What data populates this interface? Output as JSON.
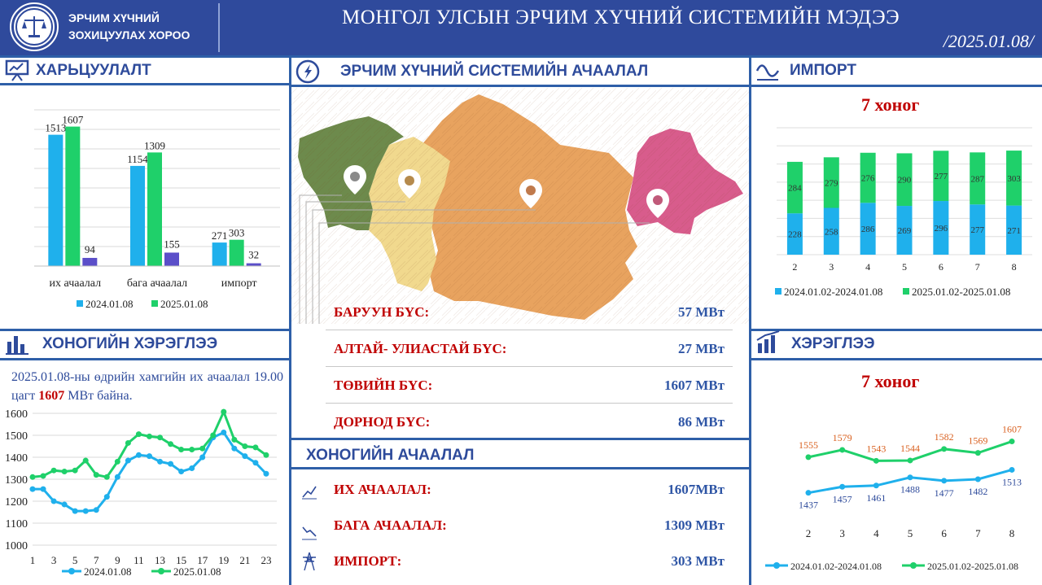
{
  "header": {
    "org_line1": "ЭРЧИМ ХҮЧНИЙ",
    "org_line2": "ЗОХИЦУУЛАХ ХОРОО",
    "title": "МОНГОЛ УЛСЫН ЭРЧИМ ХҮЧНИЙ СИСТЕМИЙН МЭДЭЭ",
    "date": "/2025.01.08/"
  },
  "sections": {
    "comparison": "ХАРЬЦУУЛАЛТ",
    "system_load": "ЭРЧИМ ХҮЧНИЙ СИСТЕМИЙН АЧААЛАЛ",
    "import": "ИМПОРТ",
    "daily_consumption": "ХОНОГИЙН ХЭРЭГЛЭЭ",
    "daily_load": "ХОНОГИЙН АЧААЛАЛ",
    "consumption": "ХЭРЭГЛЭЭ"
  },
  "daily_note": {
    "prefix": "2025.01.08-ны өдрийн хамгийн их ачаалал 19.00 цагт ",
    "value": "1607",
    "suffix": " МВт байна."
  },
  "regions": [
    {
      "name": "БАРУУН БҮС:",
      "value": "57 МВт"
    },
    {
      "name": "АЛТАЙ- УЛИАСТАЙ БҮС:",
      "value": "27 МВт"
    },
    {
      "name": "ТӨВИЙН БҮС:",
      "value": "1607 МВт"
    },
    {
      "name": "ДОРНОД БҮС:",
      "value": "86 МВт"
    }
  ],
  "daily_load": [
    {
      "name": "ИХ АЧААЛАЛ:",
      "value": "1607МВт"
    },
    {
      "name": "БАГА АЧААЛАЛ:",
      "value": "1309 МВт"
    },
    {
      "name": "ИМПОРТ:",
      "value": "303 МВт"
    }
  ],
  "week_label": "7 хоног",
  "colors": {
    "blue": "#1fb0ec",
    "green": "#1fd06a",
    "purple": "#5b4fc9",
    "header": "#2f4a9c",
    "orange_label": "#d9601f"
  },
  "icons": [
    "presentation-icon",
    "energy-icon",
    "wave-icon",
    "bar-chart-icon",
    "growth-chart-icon",
    "up-trend-icon",
    "down-trend-icon",
    "power-tower-icon",
    "map-pin-icon"
  ],
  "chart_data": [
    {
      "id": "comparison",
      "type": "bar",
      "categories": [
        "их ачаалал",
        "бага ачаалал",
        "импорт"
      ],
      "series": [
        {
          "name": "2024.01.08",
          "values": [
            1513,
            1154,
            271
          ],
          "color": "#1fb0ec"
        },
        {
          "name": "2025.01.08",
          "values": [
            1607,
            1309,
            303
          ],
          "color": "#1fd06a"
        }
      ],
      "diff_values": [
        94,
        155,
        32
      ],
      "diff_color": "#5b4fc9",
      "ylim": [
        0,
        1800
      ],
      "legend": "bottom"
    },
    {
      "id": "import_week",
      "type": "bar",
      "stacked": true,
      "categories": [
        "2",
        "3",
        "4",
        "5",
        "6",
        "7",
        "8"
      ],
      "series": [
        {
          "name": "2024.01.02-2024.01.08",
          "values": [
            228,
            258,
            286,
            269,
            296,
            277,
            271
          ],
          "color": "#1fb0ec"
        },
        {
          "name": "2025.01.02-2025.01.08",
          "values": [
            284,
            279,
            276,
            290,
            277,
            287,
            303
          ],
          "color": "#1fd06a"
        }
      ],
      "ylim": [
        0,
        700
      ],
      "legend": "bottom"
    },
    {
      "id": "daily_consumption",
      "type": "line",
      "x": [
        1,
        2,
        3,
        4,
        5,
        6,
        7,
        8,
        9,
        10,
        11,
        12,
        13,
        14,
        15,
        16,
        17,
        18,
        19,
        20,
        21,
        22,
        23,
        24
      ],
      "xticks": [
        "1",
        "3",
        "5",
        "7",
        "9",
        "11",
        "13",
        "15",
        "17",
        "19",
        "21",
        "23"
      ],
      "series": [
        {
          "name": "2024.01.08",
          "values": [
            1255,
            1255,
            1200,
            1185,
            1155,
            1155,
            1160,
            1220,
            1310,
            1385,
            1410,
            1405,
            1380,
            1370,
            1335,
            1350,
            1400,
            1490,
            1513,
            1440,
            1405,
            1375,
            1325,
            null
          ],
          "color": "#1fb0ec"
        },
        {
          "name": "2025.01.08",
          "values": [
            1310,
            1315,
            1340,
            1335,
            1340,
            1385,
            1320,
            1310,
            1380,
            1465,
            1505,
            1495,
            1490,
            1460,
            1435,
            1435,
            1440,
            1500,
            1607,
            1480,
            1450,
            1445,
            1410,
            null
          ],
          "color": "#1fd06a"
        }
      ],
      "yticks": [
        1000,
        1100,
        1200,
        1300,
        1400,
        1500,
        1600
      ],
      "ylim": [
        1000,
        1600
      ],
      "legend": "bottom"
    },
    {
      "id": "consumption_week",
      "type": "line",
      "x": [
        2,
        3,
        4,
        5,
        6,
        7,
        8
      ],
      "series": [
        {
          "name": "2024.01.02-2024.01.08",
          "values": [
            1437,
            1457,
            1461,
            1488,
            1477,
            1482,
            1513
          ],
          "color": "#1fb0ec"
        },
        {
          "name": "2025.01.02-2025.01.08",
          "values": [
            1555,
            1579,
            1543,
            1544,
            1582,
            1569,
            1607
          ],
          "color": "#1fd06a"
        }
      ],
      "ylim": [
        1350,
        1700
      ],
      "legend": "bottom"
    }
  ]
}
